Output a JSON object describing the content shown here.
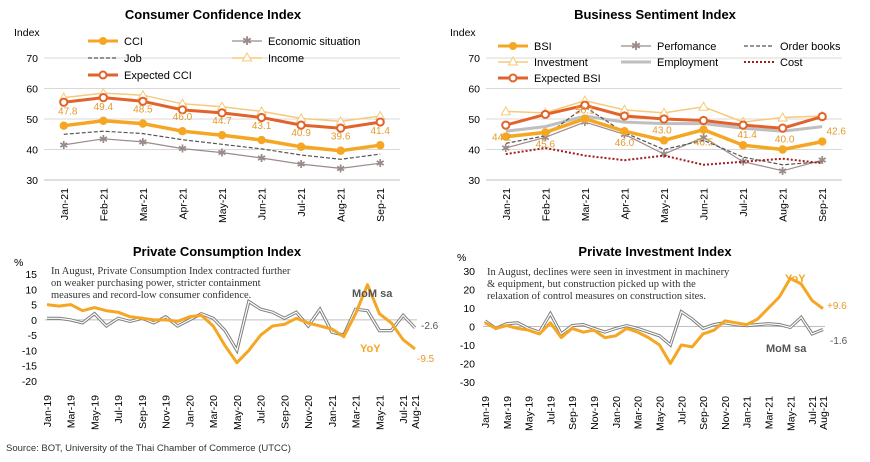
{
  "source": "Source: BOT, University of the Thai Chamber of Commerce (UTCC)",
  "colors": {
    "orange": "#F5A623",
    "darkorange": "#E1632B",
    "income": "#F7C97A",
    "grey": "#8C8C8C",
    "job": "#555555",
    "econ": "#9B8B8B",
    "cost": "#A31C1C",
    "employment": "#BFBFBF"
  },
  "chart_data": [
    {
      "type": "line",
      "title": "Consumer Confidence Index",
      "ylabel": "Index",
      "ylim": [
        30,
        70
      ],
      "yticks": [
        "30",
        "40",
        "50",
        "60",
        "70"
      ],
      "categories": [
        "Jan-21",
        "Feb-21",
        "Mar-21",
        "Apr-21",
        "May-21",
        "Jun-21",
        "Jul-21",
        "Aug-21",
        "Sep-21"
      ],
      "series": [
        {
          "name": "CCI",
          "values": [
            47.8,
            49.4,
            48.5,
            46.0,
            44.7,
            43.1,
            40.9,
            39.6,
            41.4
          ],
          "color": "#F5A623",
          "labels": [
            "47.8",
            "49.4",
            "48.5",
            "46.0",
            "44.7",
            "43.1",
            "40.9",
            "39.6",
            "41.4"
          ]
        },
        {
          "name": "Economic situation",
          "values": [
            41.5,
            43.5,
            42.5,
            40.3,
            39.0,
            37.2,
            35.2,
            33.8,
            35.5
          ],
          "color": "#9B8B8B"
        },
        {
          "name": "Job",
          "values": [
            45.0,
            46.0,
            45.2,
            43.2,
            41.7,
            40.2,
            38.2,
            36.8,
            38.5
          ],
          "color": "#555555"
        },
        {
          "name": "Income",
          "values": [
            57.0,
            58.5,
            57.8,
            55.0,
            54.0,
            52.5,
            50.2,
            49.2,
            51.0
          ],
          "color": "#F7C97A"
        },
        {
          "name": "Expected CCI",
          "values": [
            55.5,
            57.0,
            55.8,
            53.0,
            52.0,
            50.5,
            48.0,
            47.0,
            49.0
          ],
          "color": "#E1632B"
        }
      ]
    },
    {
      "type": "line",
      "title": "Business Sentiment Index",
      "ylabel": "Index",
      "ylim": [
        30,
        70
      ],
      "yticks": [
        "30",
        "40",
        "50",
        "60",
        "70"
      ],
      "categories": [
        "Jan-21",
        "Feb-21",
        "Mar-21",
        "Apr-21",
        "May-21",
        "Jun-21",
        "Jul-21",
        "Aug-21",
        "Sep-21"
      ],
      "series": [
        {
          "name": "BSI",
          "values": [
            44.2,
            45.6,
            50.1,
            46.0,
            43.0,
            46.5,
            41.4,
            40.0,
            42.6
          ],
          "color": "#F5A623",
          "labels": [
            "44.2",
            "45.6",
            "50.1",
            "46.0",
            "43.0",
            "46.5",
            "41.4",
            "40.0",
            "42.6"
          ]
        },
        {
          "name": "Perfomance",
          "values": [
            40.5,
            44.0,
            49.0,
            45.0,
            38.5,
            44.0,
            36.0,
            33.0,
            36.5
          ],
          "color": "#9B8B8B"
        },
        {
          "name": "Order books",
          "values": [
            42.0,
            44.5,
            54.0,
            45.5,
            40.0,
            43.0,
            37.5,
            35.0,
            36.0
          ],
          "color": "#555555"
        },
        {
          "name": "Investment",
          "values": [
            52.5,
            52.0,
            56.0,
            53.0,
            52.0,
            54.0,
            49.0,
            50.5,
            51.0
          ],
          "color": "#F7C97A"
        },
        {
          "name": "Employment",
          "values": [
            46.0,
            47.5,
            51.0,
            49.0,
            48.5,
            48.5,
            47.0,
            46.0,
            47.5
          ],
          "color": "#BFBFBF"
        },
        {
          "name": "Cost",
          "values": [
            38.5,
            40.5,
            38.0,
            36.5,
            38.0,
            35.0,
            36.0,
            37.0,
            35.5
          ],
          "color": "#A31C1C"
        },
        {
          "name": "Expected BSI",
          "values": [
            48.0,
            51.5,
            54.5,
            51.0,
            50.0,
            49.5,
            48.0,
            47.0,
            50.8
          ],
          "color": "#E1632B"
        }
      ]
    },
    {
      "type": "line",
      "title": "Private Consumption Index",
      "ylabel": "%",
      "ylim": [
        -20,
        15
      ],
      "yticks": [
        "-20",
        "-15",
        "-10",
        "-5",
        "0",
        "5",
        "10",
        "15"
      ],
      "note": [
        "In August, Private Consumption Index contracted further",
        "on weaker purchasing power, stricter containment",
        "measures and record-low consumer confidence."
      ],
      "categories": [
        "Jan-19",
        "Feb-19",
        "Mar-19",
        "Apr-19",
        "May-19",
        "Jun-19",
        "Jul-19",
        "Aug-19",
        "Sep-19",
        "Oct-19",
        "Nov-19",
        "Dec-19",
        "Jan-20",
        "Feb-20",
        "Mar-20",
        "Apr-20",
        "May-20",
        "Jun-20",
        "Jul-20",
        "Aug-20",
        "Sep-20",
        "Oct-20",
        "Nov-20",
        "Dec-20",
        "Jan-21",
        "Feb-21",
        "Mar-21",
        "Apr-21",
        "May-21",
        "Jun-21",
        "Jul-21",
        "Aug-21"
      ],
      "xticks": [
        "Jan-19",
        "Mar-19",
        "May-19",
        "Jul-19",
        "Sep-19",
        "Nov-19",
        "Jan-20",
        "Mar-20",
        "May-20",
        "Jul-20",
        "Sep-20",
        "Nov-20",
        "Jan-21",
        "Mar-21",
        "May-21",
        "Jul-21",
        "Aug-21"
      ],
      "series": [
        {
          "name": "YoY",
          "values": [
            5.0,
            4.5,
            5.0,
            3.0,
            4.0,
            3.0,
            2.5,
            1.0,
            0.5,
            0.0,
            0.0,
            -0.5,
            1.0,
            1.5,
            -2.0,
            -8.5,
            -14.0,
            -10.0,
            -5.0,
            -2.0,
            -1.5,
            0.5,
            -1.0,
            -2.0,
            -3.0,
            -5.5,
            2.0,
            11.5,
            2.0,
            -1.0,
            -6.5,
            -9.5
          ],
          "color": "#F5A623"
        },
        {
          "name": "MoM sa",
          "values": [
            0.5,
            0.5,
            0.0,
            -1.0,
            2.0,
            -2.0,
            0.5,
            -0.5,
            0.5,
            -1.0,
            1.0,
            -2.0,
            0.0,
            2.0,
            0.5,
            -3.5,
            -10.0,
            6.0,
            3.5,
            2.5,
            0.5,
            2.5,
            -2.0,
            3.5,
            -4.0,
            -5.0,
            3.5,
            3.0,
            -3.5,
            -3.5,
            1.5,
            -2.6
          ],
          "color": "#7F7F7F"
        }
      ],
      "end_labels": {
        "yoy": "-9.5",
        "mom": "-2.6"
      },
      "annotations": {
        "yoy": "YoY",
        "mom": "MoM sa"
      }
    },
    {
      "type": "line",
      "title": "Private Investment Index",
      "ylabel": "%",
      "ylim": [
        -30,
        30
      ],
      "yticks": [
        "-30",
        "-20",
        "-10",
        "0",
        "10",
        "20",
        "30"
      ],
      "note": [
        "In August, declines were seen in investment in machinery",
        "& equipment, but construction picked up with the",
        "relaxation of control measures on construction sites."
      ],
      "categories": [
        "Jan-19",
        "Feb-19",
        "Mar-19",
        "Apr-19",
        "May-19",
        "Jun-19",
        "Jul-19",
        "Aug-19",
        "Sep-19",
        "Oct-19",
        "Nov-19",
        "Dec-19",
        "Jan-20",
        "Feb-20",
        "Mar-20",
        "Apr-20",
        "May-20",
        "Jun-20",
        "Jul-20",
        "Aug-20",
        "Sep-20",
        "Oct-20",
        "Nov-20",
        "Dec-20",
        "Jan-21",
        "Feb-21",
        "Mar-21",
        "Apr-21",
        "May-21",
        "Jun-21",
        "Jul-21",
        "Aug-21"
      ],
      "xticks": [
        "Jan-19",
        "Mar-19",
        "May-19",
        "Jul-19",
        "Sep-19",
        "Nov-19",
        "Jan-20",
        "Mar-20",
        "May-20",
        "Jul-20",
        "Sep-20",
        "Nov-20",
        "Jan-21",
        "Mar-21",
        "May-21",
        "Jul-21",
        "Aug-21"
      ],
      "series": [
        {
          "name": "YoY",
          "values": [
            2.0,
            -1.0,
            0.5,
            -1.0,
            -2.0,
            -4.0,
            2.0,
            -6.0,
            -1.0,
            -3.0,
            -2.0,
            -6.0,
            -5.0,
            -1.0,
            -3.0,
            -6.0,
            -10.0,
            -20.0,
            -10.0,
            -11.0,
            -4.0,
            -2.0,
            3.0,
            2.0,
            1.0,
            4.0,
            10.0,
            16.0,
            26.0,
            23.0,
            14.0,
            9.6
          ],
          "color": "#F5A623"
        },
        {
          "name": "MoM sa",
          "values": [
            3.0,
            -1.0,
            1.5,
            2.0,
            -1.0,
            -3.0,
            7.0,
            -4.0,
            0.5,
            1.0,
            -1.0,
            -3.0,
            -1.0,
            0.5,
            -1.0,
            -3.0,
            -5.0,
            -10.0,
            8.0,
            4.0,
            -1.0,
            1.0,
            2.0,
            1.0,
            0.5,
            1.0,
            1.5,
            1.0,
            -0.5,
            5.0,
            -4.0,
            -1.6
          ],
          "color": "#7F7F7F"
        }
      ],
      "end_labels": {
        "yoy": "+9.6",
        "mom": "-1.6"
      },
      "annotations": {
        "yoy": "YoY",
        "mom": "MoM sa"
      }
    }
  ]
}
